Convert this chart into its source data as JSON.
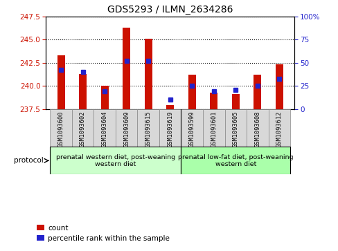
{
  "title": "GDS5293 / ILMN_2634286",
  "samples": [
    "GSM1093600",
    "GSM1093602",
    "GSM1093604",
    "GSM1093609",
    "GSM1093615",
    "GSM1093619",
    "GSM1093599",
    "GSM1093601",
    "GSM1093605",
    "GSM1093608",
    "GSM1093612"
  ],
  "count_values": [
    243.3,
    241.3,
    240.05,
    246.3,
    245.1,
    237.95,
    241.2,
    239.25,
    239.15,
    241.2,
    242.3
  ],
  "percentile_values": [
    42,
    40,
    19,
    52,
    52,
    10,
    25,
    19,
    21,
    25,
    33
  ],
  "y_min": 237.5,
  "y_max": 247.5,
  "y_ticks": [
    237.5,
    240.0,
    242.5,
    245.0,
    247.5
  ],
  "pct_ticks": [
    0,
    25,
    50,
    75,
    100
  ],
  "bar_color": "#cc1100",
  "marker_color": "#2222cc",
  "group1_indices": [
    0,
    1,
    2,
    3,
    4,
    5
  ],
  "group2_indices": [
    6,
    7,
    8,
    9,
    10
  ],
  "group1_label": "prenatal western diet, post-weaning\nwestern diet",
  "group2_label": "prenatal low-fat diet, post-weaning\nwestern diet",
  "group1_color": "#ccffcc",
  "group2_color": "#aaffaa",
  "protocol_label": "protocol",
  "legend_count": "count",
  "legend_pct": "percentile rank within the sample",
  "bar_width": 0.35
}
